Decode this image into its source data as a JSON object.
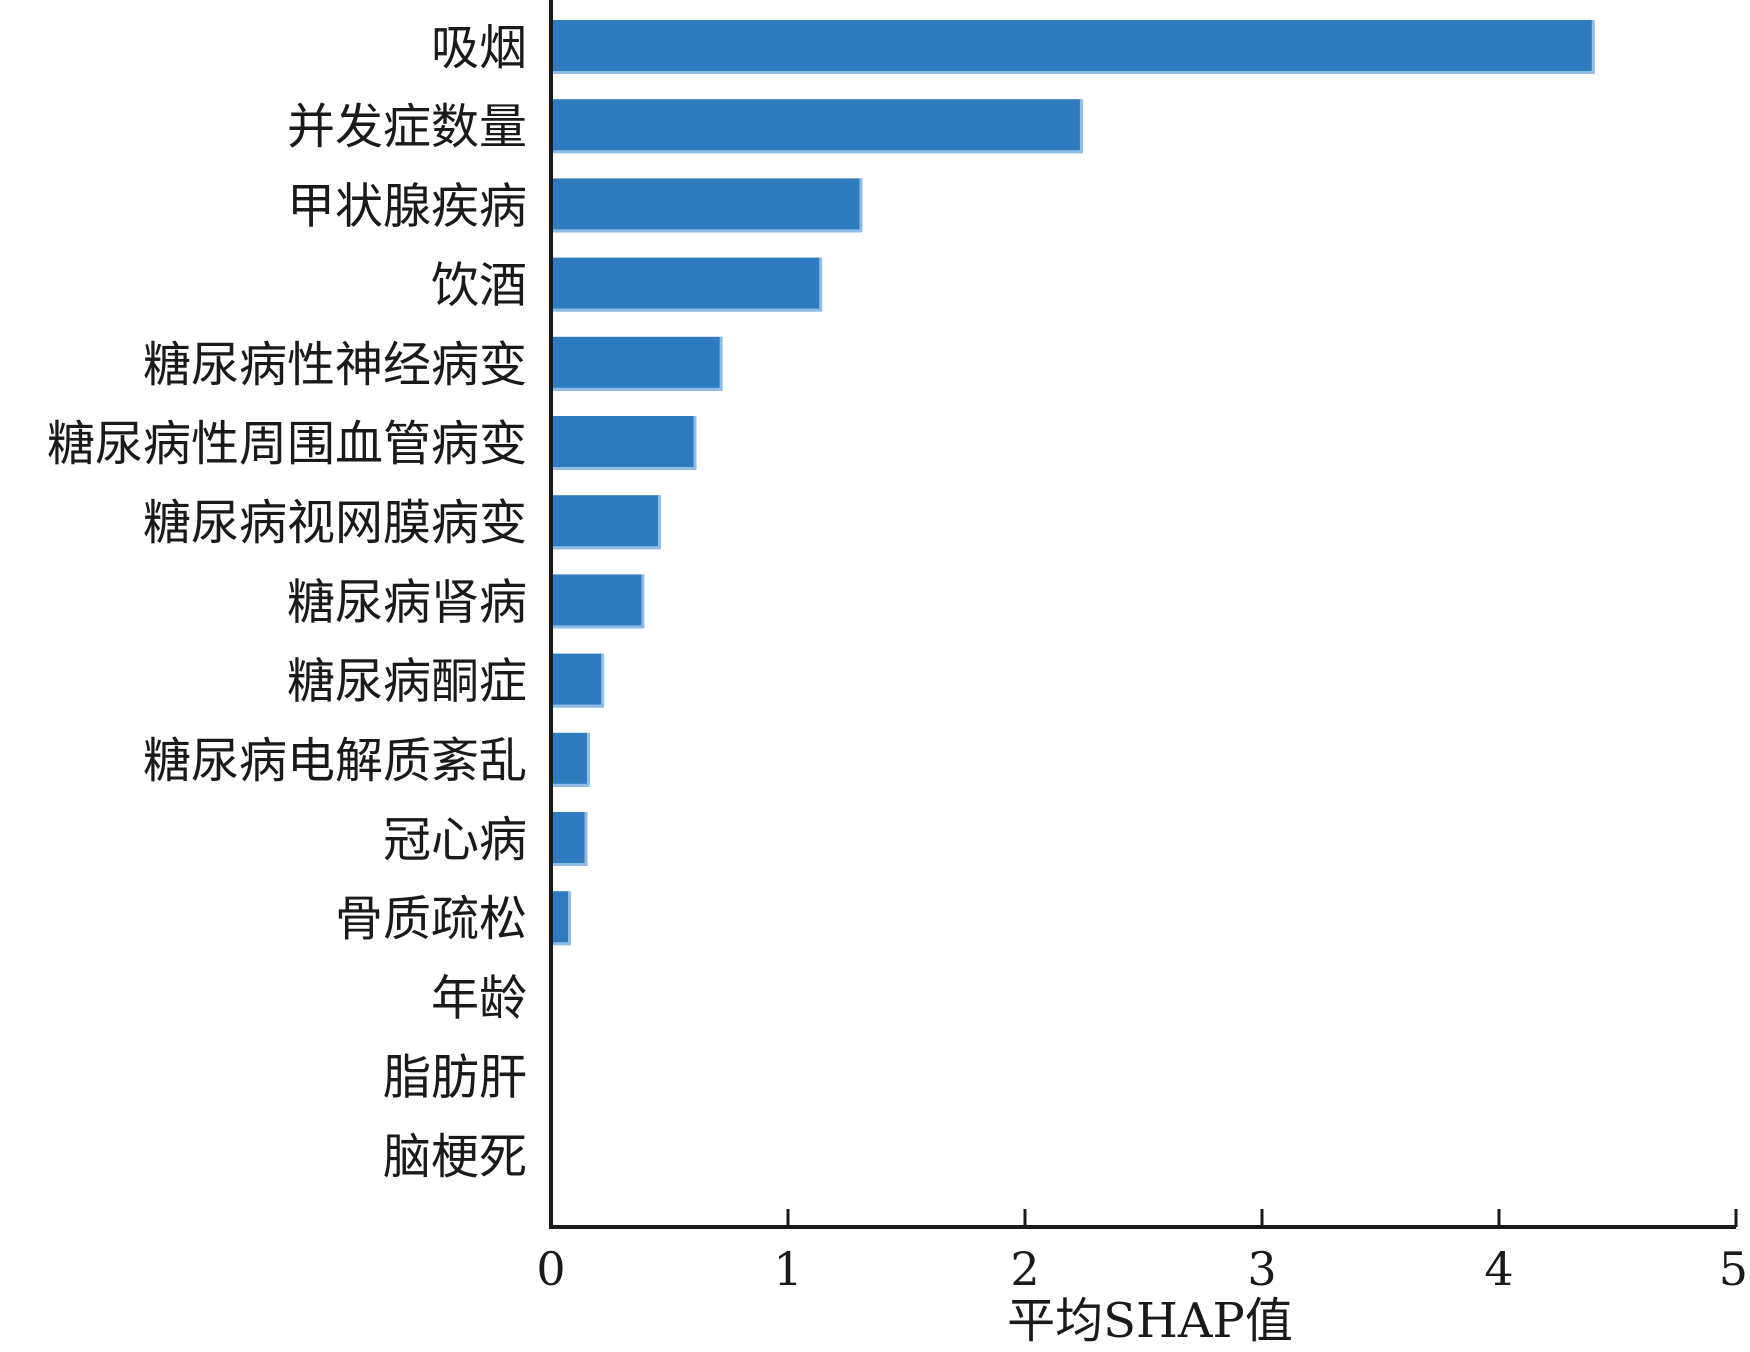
{
  "chart_data": {
    "type": "bar",
    "orientation": "horizontal",
    "categories": [
      "吸烟",
      "并发症数量",
      "甲状腺疾病",
      "饮酒",
      "糖尿病性神经病变",
      "糖尿病性周围血管病变",
      "糖尿病视网膜病变",
      "糖尿病肾病",
      "糖尿病酮症",
      "糖尿病电解质紊乱",
      "冠心病",
      "骨质疏松",
      "年龄",
      "脂肪肝",
      "脑梗死"
    ],
    "values": [
      4.4,
      2.24,
      1.31,
      1.14,
      0.72,
      0.61,
      0.46,
      0.39,
      0.22,
      0.16,
      0.15,
      0.08,
      0.0,
      0.0,
      0.0
    ],
    "title": "",
    "xlabel": "平均SHAP值",
    "ylabel": "",
    "xlim": [
      0,
      5
    ],
    "xticks": [
      "0",
      "1",
      "2",
      "3",
      "4",
      "5"
    ],
    "grid": false,
    "bar_color": "#2f7bbf",
    "bar_highlight_color": "#8fbde6"
  }
}
